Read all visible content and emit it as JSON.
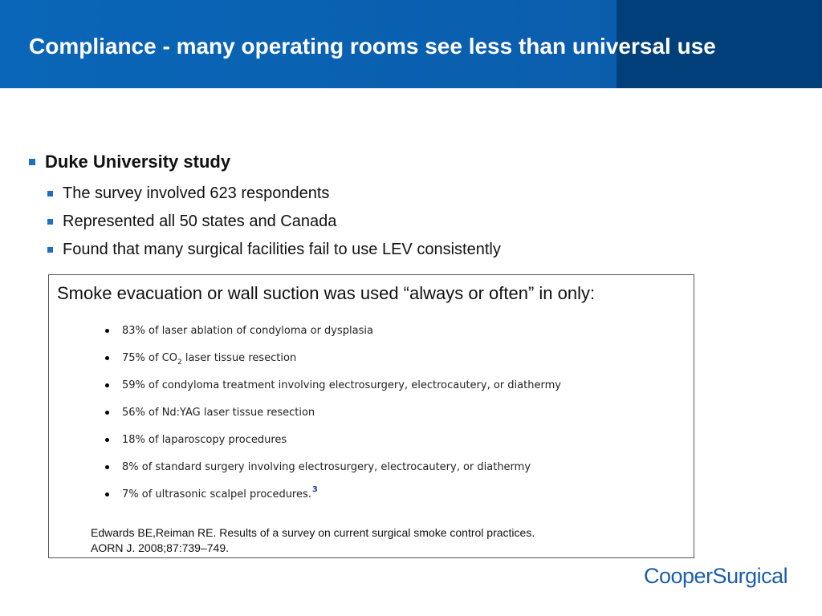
{
  "header": {
    "title": "Compliance - many operating rooms see less than universal use"
  },
  "bullets": {
    "main": "Duke University study",
    "sub": [
      "The survey involved 623 respondents",
      "Represented all 50 states and Canada",
      "Found that many surgical facilities fail to use LEV consistently"
    ]
  },
  "box": {
    "heading": "Smoke evacuation or wall suction was used “always or often” in only:",
    "items": [
      "83% of laser ablation of condyloma or dysplasia",
      "75% of CO",
      "2",
      " laser tissue resection",
      "59% of condyloma treatment involving electrosurgery, electrocautery, or diathermy",
      "56% of Nd:YAG laser tissue resection",
      "18% of laparoscopy procedures",
      "8% of standard surgery involving electrosurgery, electrocautery, or diathermy",
      "7% of ultrasonic scalpel procedures.",
      "3"
    ],
    "citation": "Edwards BE,Reiman RE. Results of a survey on current surgical smoke control practices. AORN J. 2008;87:739–749."
  },
  "logo": {
    "text": "CooperSurgical"
  },
  "colors": {
    "header_blue": "#0a66b8",
    "header_dark": "#003f7a",
    "bullet_blue": "#1e6fc0",
    "logo_blue": "#1d5fa8"
  }
}
